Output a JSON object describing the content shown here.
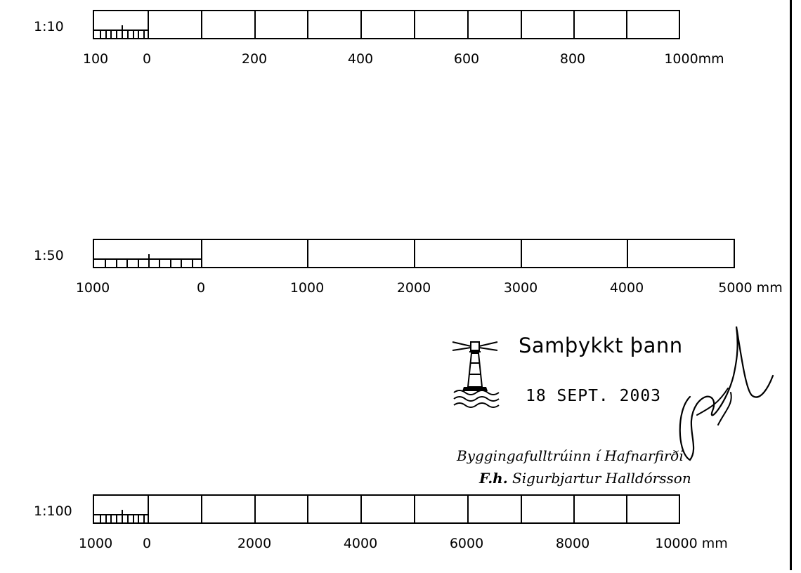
{
  "scales": [
    {
      "name": "1:10",
      "labels": [
        "100",
        "0",
        "200",
        "400",
        "600",
        "800",
        "1000mm"
      ],
      "subdivisions": 10
    },
    {
      "name": "1:50",
      "labels": [
        "1000",
        "0",
        "1000",
        "2000",
        "3000",
        "4000",
        "5000 mm"
      ],
      "subdivisions": 10
    },
    {
      "name": "1:100",
      "labels": [
        "1000",
        "0",
        "2000",
        "4000",
        "6000",
        "8000",
        "10000 mm"
      ],
      "subdivisions": 10
    }
  ],
  "stamp": {
    "approved": "Samþykkt þann",
    "date": "18 SEPT. 2003",
    "office": "Byggingafulltrúinn í Hafnarfirði",
    "official_prefix": "F.h.",
    "official_name": "Sigurbjartur Halldórsson",
    "icon": "lighthouse-icon",
    "signature": "handwritten signature"
  }
}
